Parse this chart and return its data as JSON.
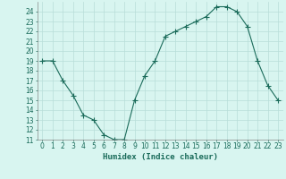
{
  "x": [
    0,
    1,
    2,
    3,
    4,
    5,
    6,
    7,
    8,
    9,
    10,
    11,
    12,
    13,
    14,
    15,
    16,
    17,
    18,
    19,
    20,
    21,
    22,
    23
  ],
  "y": [
    19,
    19,
    17,
    15.5,
    13.5,
    13,
    11.5,
    11,
    11,
    15,
    17.5,
    19,
    21.5,
    22,
    22.5,
    23,
    23.5,
    24.5,
    24.5,
    24,
    22.5,
    19,
    16.5,
    15
  ],
  "line_color": "#1a6b5a",
  "marker": "+",
  "marker_size": 4,
  "background_color": "#d8f5f0",
  "grid_color": "#b8ddd8",
  "xlabel": "Humidex (Indice chaleur)",
  "ylim": [
    11,
    25
  ],
  "xlim": [
    -0.5,
    23.5
  ],
  "yticks": [
    11,
    12,
    13,
    14,
    15,
    16,
    17,
    18,
    19,
    20,
    21,
    22,
    23,
    24
  ],
  "xticks": [
    0,
    1,
    2,
    3,
    4,
    5,
    6,
    7,
    8,
    9,
    10,
    11,
    12,
    13,
    14,
    15,
    16,
    17,
    18,
    19,
    20,
    21,
    22,
    23
  ],
  "tick_fontsize": 5.5,
  "xlabel_fontsize": 6.5,
  "line_width": 0.8,
  "marker_edge_width": 0.8
}
